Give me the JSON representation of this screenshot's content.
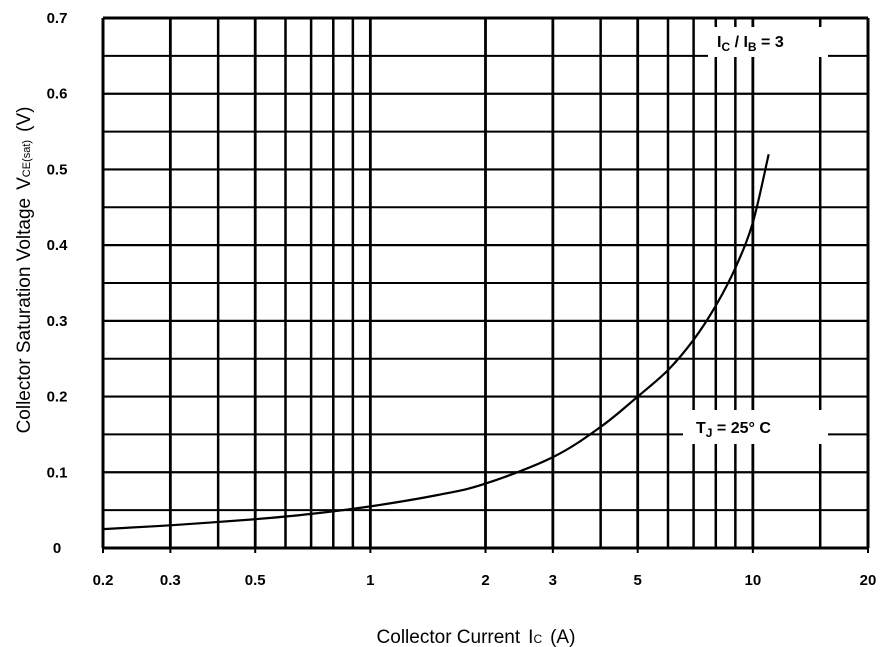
{
  "chart_data": {
    "type": "line",
    "title": "",
    "xlabel": "Collector Current",
    "xlabel_symbol": "I",
    "xlabel_symbol_sub": "C",
    "xlabel_unit": "(A)",
    "ylabel": "Collector Saturation Voltage",
    "ylabel_symbol": "V",
    "ylabel_symbol_sub": "CE(sat)",
    "ylabel_unit": "(V)",
    "x_scale": "log",
    "xlim": [
      0.2,
      20
    ],
    "ylim": [
      0,
      0.7
    ],
    "grid": true,
    "x_ticks": [
      0.2,
      0.3,
      0.5,
      1,
      2,
      3,
      5,
      10,
      20
    ],
    "x_tick_labels": [
      "0.2",
      "0.3",
      "0.5",
      "1",
      "2",
      "3",
      "5",
      "10",
      "20"
    ],
    "y_ticks": [
      0,
      0.1,
      0.2,
      0.3,
      0.4,
      0.5,
      0.6,
      0.7
    ],
    "y_tick_labels": [
      "0",
      "0.1",
      "0.2",
      "0.3",
      "0.4",
      "0.5",
      "0.6",
      "0.7"
    ],
    "x_minor_grid": [
      0.4,
      0.6,
      0.7,
      0.8,
      0.9,
      4,
      6,
      7,
      8,
      9,
      15
    ],
    "y_minor_grid": [
      0.05,
      0.15,
      0.25,
      0.35,
      0.45,
      0.55,
      0.65
    ],
    "series": [
      {
        "x": [
          0.2,
          0.3,
          0.5,
          0.7,
          1,
          1.5,
          2,
          3,
          4,
          5,
          6,
          7,
          8,
          9,
          10,
          11
        ],
        "y": [
          0.025,
          0.03,
          0.038,
          0.045,
          0.055,
          0.07,
          0.085,
          0.12,
          0.16,
          0.2,
          0.235,
          0.275,
          0.32,
          0.37,
          0.43,
          0.52
        ]
      }
    ],
    "annotations": [
      {
        "id": "ratio",
        "main": "I",
        "sub1": "C",
        "mid": " / I",
        "sub2": "B",
        "tail": " = 3"
      },
      {
        "id": "temp",
        "main": "T",
        "sub1": "J",
        "tail": " = 25° C"
      }
    ]
  }
}
